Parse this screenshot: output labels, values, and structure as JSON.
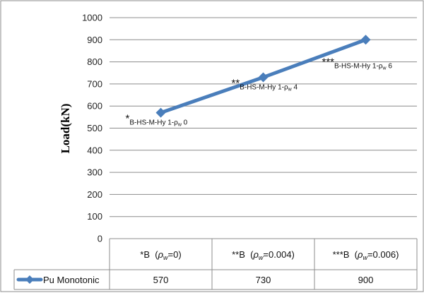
{
  "chart_data": {
    "type": "line",
    "title": "",
    "ylabel": "Load(kN)",
    "ylim": [
      0,
      1000
    ],
    "yticks": [
      "0",
      "100",
      "200",
      "300",
      "400",
      "500",
      "600",
      "700",
      "800",
      "900",
      "1000"
    ],
    "grid": true,
    "legend_position": "left of data table",
    "line_color": "#4a7ebb",
    "categories": [
      {
        "prefix": "*B",
        "var": "ρ",
        "sub": "w",
        "value": "=0"
      },
      {
        "prefix": "**B",
        "var": "ρ",
        "sub": "w",
        "value": "=0.004"
      },
      {
        "prefix": "***B",
        "var": "ρ",
        "sub": "w",
        "value": "=0.006"
      }
    ],
    "series": [
      {
        "name": "Pu Monotonic",
        "values": [
          570,
          730,
          900
        ],
        "value_labels": [
          "570",
          "730",
          "900"
        ]
      }
    ],
    "annotations": [
      {
        "stars": "*",
        "text": "B-HS-M-Hy 1-ρ",
        "sub": "w",
        "tail": " 0"
      },
      {
        "stars": "**",
        "text": "B-HS-M-Hy 1-ρ",
        "sub": "w",
        "tail": " 4"
      },
      {
        "stars": "***",
        "text": "B-HS-M-Hy 1-ρ",
        "sub": "w",
        "tail": " 6"
      }
    ]
  }
}
